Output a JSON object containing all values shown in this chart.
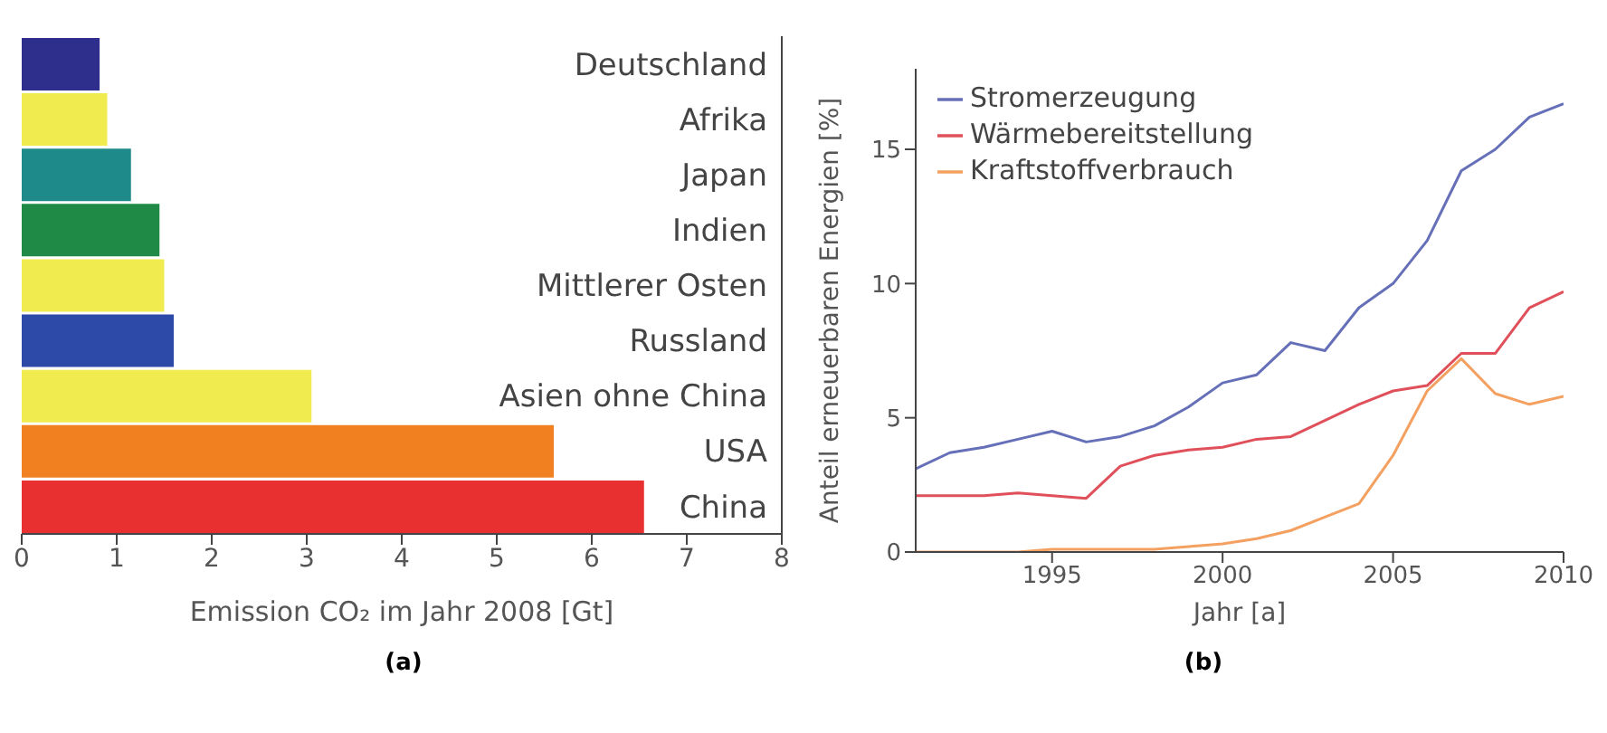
{
  "chart_data": [
    {
      "type": "bar",
      "title": "(a)",
      "orientation": "horizontal",
      "xlabel": "Emission CO₂ im Jahr 2008 [Gt]",
      "categories": [
        "Deutschland",
        "Afrika",
        "Japan",
        "Indien",
        "Mittlerer Osten",
        "Russland",
        "Asien ohne China",
        "USA",
        "China"
      ],
      "values": [
        0.82,
        0.9,
        1.15,
        1.45,
        1.5,
        1.6,
        3.05,
        5.6,
        6.55
      ],
      "colors": [
        "#2e2f8c",
        "#f0ec50",
        "#1f8a8a",
        "#1f8a45",
        "#f0ec50",
        "#2e4aa8",
        "#f0ec50",
        "#f08020",
        "#e83030"
      ],
      "xlim": [
        0,
        8
      ],
      "xticks": [
        0,
        1,
        2,
        3,
        4,
        5,
        6,
        7,
        8
      ],
      "grid": false,
      "legend": false
    },
    {
      "type": "line",
      "title": "(b)",
      "xlabel": "Jahr [a]",
      "ylabel": "Anteil erneuerbaren Energien [%]",
      "x": [
        1991,
        1992,
        1993,
        1994,
        1995,
        1996,
        1997,
        1998,
        1999,
        2000,
        2001,
        2002,
        2003,
        2004,
        2005,
        2006,
        2007,
        2008,
        2009,
        2010
      ],
      "series": [
        {
          "name": "Stromerzeugung",
          "color": "#6670b8",
          "values": [
            3.1,
            3.7,
            3.9,
            4.2,
            4.5,
            4.1,
            4.3,
            4.7,
            5.4,
            6.3,
            6.6,
            7.8,
            7.5,
            9.1,
            10.0,
            11.6,
            14.2,
            15.0,
            16.2,
            16.7
          ]
        },
        {
          "name": "Wärmebereitstellung",
          "color": "#e0505a",
          "values": [
            2.1,
            2.1,
            2.1,
            2.2,
            2.1,
            2.0,
            3.2,
            3.6,
            3.8,
            3.9,
            4.2,
            4.3,
            4.9,
            5.5,
            6.0,
            6.2,
            7.4,
            7.4,
            9.1,
            9.7
          ]
        },
        {
          "name": "Kraftstoffverbrauch",
          "color": "#f4a060",
          "values": [
            0,
            0,
            0,
            0,
            0.1,
            0.1,
            0.1,
            0.1,
            0.2,
            0.3,
            0.5,
            0.8,
            1.3,
            1.8,
            3.6,
            6.0,
            7.2,
            5.9,
            5.5,
            5.8
          ]
        }
      ],
      "xlim": [
        1991,
        2010
      ],
      "xticks": [
        1995,
        2000,
        2005,
        2010
      ],
      "ylim": [
        0,
        18
      ],
      "yticks": [
        0,
        5,
        10,
        15
      ],
      "grid": false,
      "legend": "top left",
      "marker": "none",
      "line_style": "solid"
    }
  ]
}
